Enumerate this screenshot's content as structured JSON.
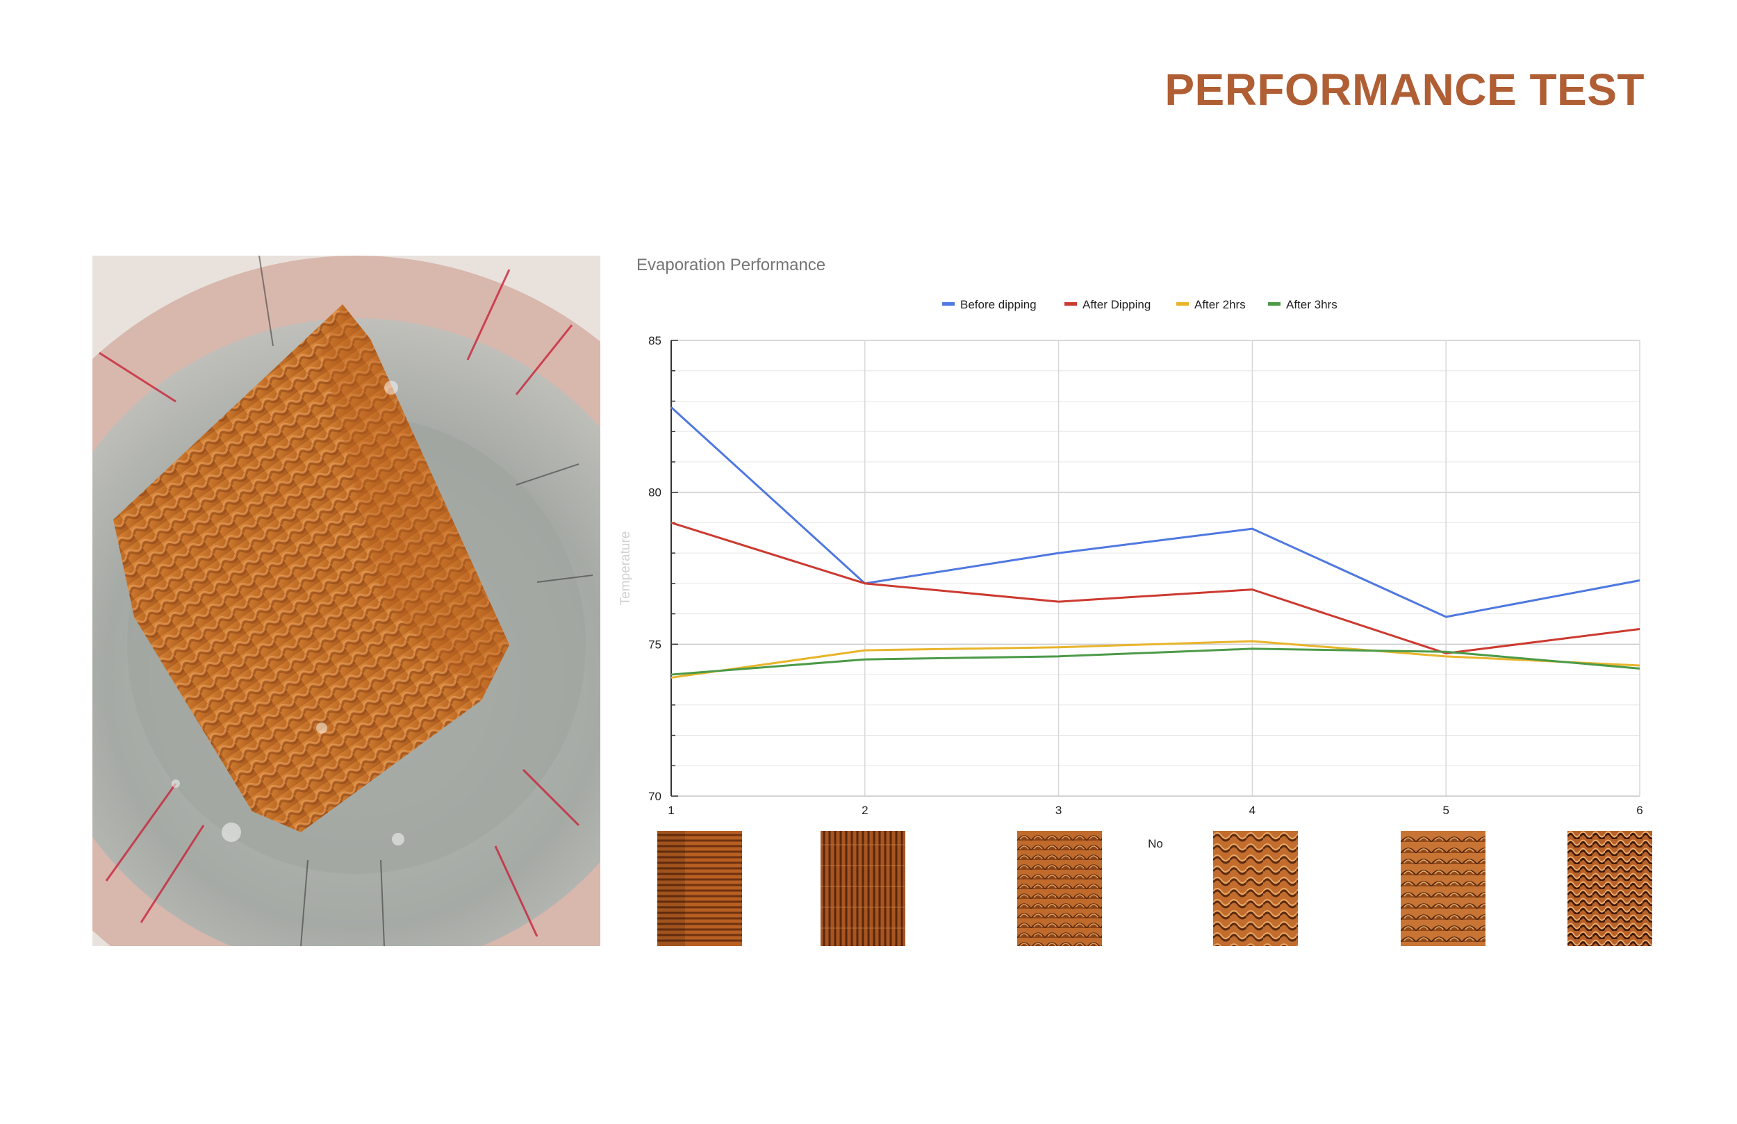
{
  "page": {
    "title": "PERFORMANCE TEST",
    "accent_color": "#b05e34"
  },
  "photo": {
    "icon": "clay-tile-in-water-photo"
  },
  "swatches": [
    {
      "pattern": "horizontal-ridges"
    },
    {
      "pattern": "vertical-ridges"
    },
    {
      "pattern": "scale-texture"
    },
    {
      "pattern": "wave-texture"
    },
    {
      "pattern": "scale-texture"
    },
    {
      "pattern": "dense-wave-texture"
    }
  ],
  "chart_data": {
    "type": "line",
    "title": "Evaporation Performance",
    "xlabel": "No",
    "ylabel": "Temperature",
    "x": [
      1,
      2,
      3,
      4,
      5,
      6
    ],
    "xlim": [
      1,
      6
    ],
    "ylim": [
      70,
      85
    ],
    "y_ticks": [
      70,
      75,
      80,
      85
    ],
    "grid": true,
    "legend_position": "top",
    "series": [
      {
        "name": "Before dipping",
        "color": "#4f78e0",
        "values": [
          82.8,
          77.0,
          78.0,
          78.8,
          75.9,
          77.1
        ]
      },
      {
        "name": "After Dipping",
        "color": "#cc3a30",
        "values": [
          79.0,
          77.0,
          76.4,
          76.8,
          74.7,
          75.5
        ]
      },
      {
        "name": "After 2hrs",
        "color": "#e8b42a",
        "values": [
          73.9,
          74.8,
          74.9,
          75.1,
          74.6,
          74.3
        ]
      },
      {
        "name": "After 3hrs",
        "color": "#4c9a48",
        "values": [
          74.0,
          74.5,
          74.6,
          74.85,
          74.75,
          74.2
        ]
      }
    ]
  }
}
